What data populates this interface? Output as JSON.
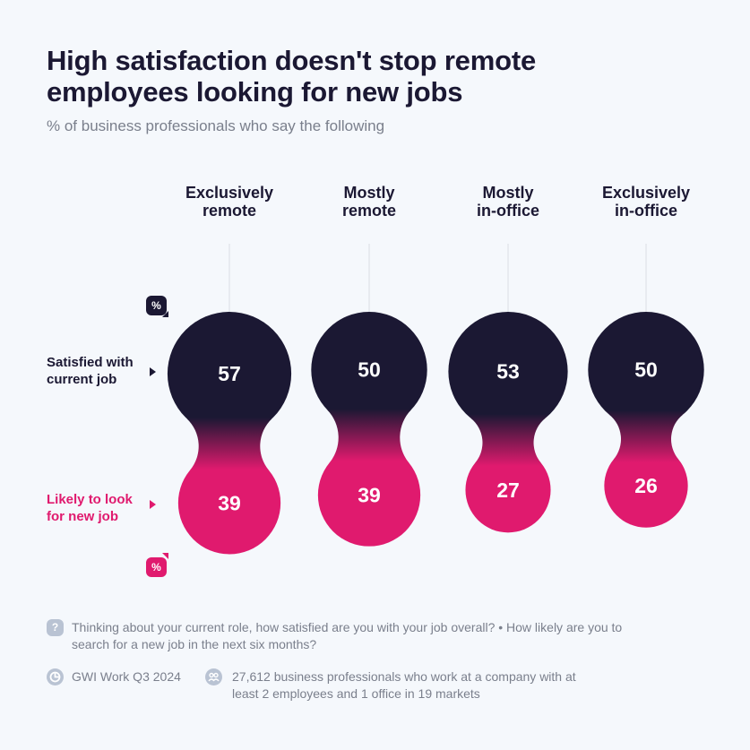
{
  "title_line1": "High satisfaction doesn't stop remote",
  "title_line2": "employees looking for new jobs",
  "subtitle": "% of business professionals who say the following",
  "colors": {
    "satisfied": "#1b1833",
    "likely": "#e01a6e",
    "background": "#f5f8fc"
  },
  "unit_badge": "%",
  "chart_data": {
    "type": "bubble-pairs",
    "unit": "%",
    "categories": [
      {
        "line1": "Exclusively",
        "line2": "remote"
      },
      {
        "line1": "Mostly",
        "line2": "remote"
      },
      {
        "line1": "Mostly",
        "line2": "in-office"
      },
      {
        "line1": "Exclusively",
        "line2": "in-office"
      }
    ],
    "series": [
      {
        "name_line1": "Satisfied with",
        "name_line2": "current job",
        "color": "#1b1833",
        "values": [
          57,
          50,
          53,
          50
        ]
      },
      {
        "name_line1": "Likely to look",
        "name_line2": "for new job",
        "color": "#e01a6e",
        "values": [
          39,
          39,
          27,
          26
        ]
      }
    ]
  },
  "footer": {
    "question_icon": "?",
    "question": "Thinking about your current role, how satisfied are you with your job overall? • How likely are you to search for a new job in the next six months?",
    "source_icon": "pie-chart-icon",
    "source": "GWI Work Q3 2024",
    "sample_icon": "people-icon",
    "sample": "27,612 business professionals who work at a company with at least 2 employees and 1 office in 19 markets"
  }
}
